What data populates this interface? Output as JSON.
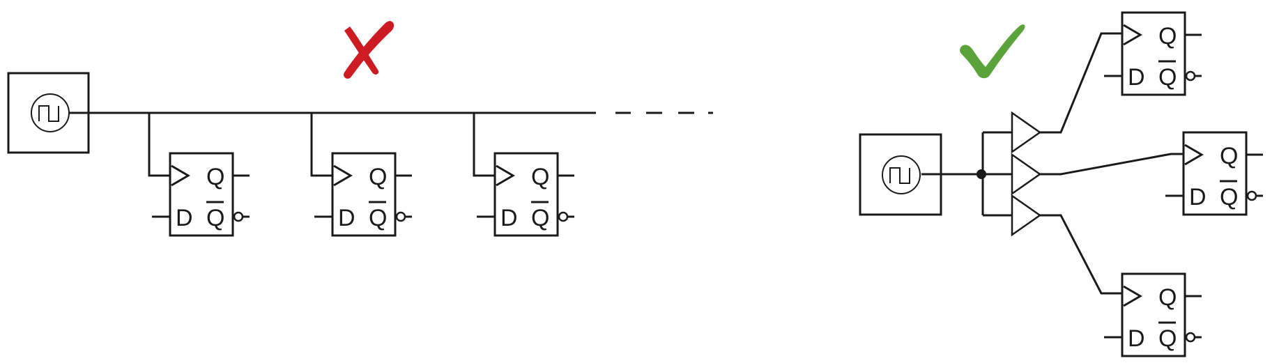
{
  "diagram": {
    "bad_example": {
      "mark": "wrong-mark",
      "mark_color": "#cc1b22",
      "description_type": "single clock line feeding multiple flip-flops in daisy chain",
      "flip_flops": [
        {
          "q": "Q",
          "d": "D",
          "qbar": "Q"
        },
        {
          "q": "Q",
          "d": "D",
          "qbar": "Q"
        },
        {
          "q": "Q",
          "d": "D",
          "qbar": "Q"
        }
      ]
    },
    "good_example": {
      "mark": "check-mark",
      "mark_color": "#5aa23a",
      "flip_flops": [
        {
          "q": "Q",
          "d": "D",
          "qbar": "Q"
        },
        {
          "q": "Q",
          "d": "D",
          "qbar": "Q"
        },
        {
          "q": "Q",
          "d": "D",
          "qbar": "Q"
        }
      ]
    }
  }
}
